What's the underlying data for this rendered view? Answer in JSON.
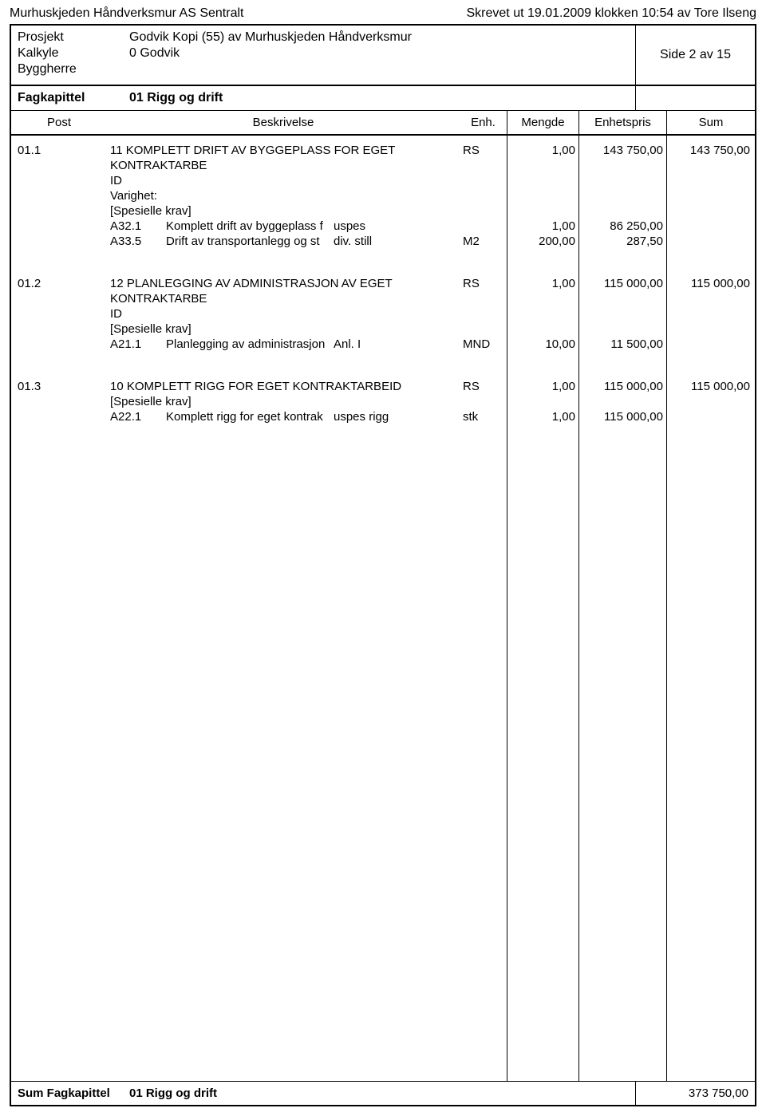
{
  "top": {
    "left": "Murhuskjeden Håndverksmur AS Sentralt",
    "right": "Skrevet ut 19.01.2009 klokken 10:54 av Tore Ilseng"
  },
  "header": {
    "prosjekt_label": "Prosjekt",
    "prosjekt_value": "Godvik Kopi (55) av Murhuskjeden Håndverksmur",
    "kalkyle_label": "Kalkyle",
    "kalkyle_value": "0 Godvik",
    "byggherre_label": "Byggherre",
    "side": "Side 2 av 15"
  },
  "fagkapittel": {
    "label": "Fagkapittel",
    "value": "01 Rigg og drift"
  },
  "columns": {
    "post": "Post",
    "beskrivelse": "Beskrivelse",
    "enh": "Enh.",
    "mengde": "Mengde",
    "enhetspris": "Enhetspris",
    "sum": "Sum"
  },
  "items": [
    {
      "post": "01.1",
      "title": "11 KOMPLETT DRIFT AV BYGGEPLASS FOR EGET KONTRAKTARBE",
      "enh": "RS",
      "mengde": "1,00",
      "pris": "143 750,00",
      "sum": "143 750,00",
      "extra": [
        "ID",
        "Varighet:",
        "[Spesielle krav]"
      ],
      "subs": [
        {
          "code": "A32.1",
          "t1": "Komplett drift av byggeplass f",
          "t2": "uspes",
          "enh": "",
          "mengde": "1,00",
          "pris": "86 250,00"
        },
        {
          "code": "A33.5",
          "t1": "Drift av transportanlegg og st",
          "t2": "div. still",
          "enh": "M2",
          "mengde": "200,00",
          "pris": "287,50"
        }
      ]
    },
    {
      "post": "01.2",
      "title": "12 PLANLEGGING AV ADMINISTRASJON AV EGET KONTRAKTARBE",
      "enh": "RS",
      "mengde": "1,00",
      "pris": "115 000,00",
      "sum": "115 000,00",
      "extra": [
        "ID",
        "[Spesielle krav]"
      ],
      "subs": [
        {
          "code": "A21.1",
          "t1": "Planlegging av administrasjon",
          "t2": "Anl. I",
          "enh": "MND",
          "mengde": "10,00",
          "pris": "11 500,00"
        }
      ]
    },
    {
      "post": "01.3",
      "title": "10 KOMPLETT RIGG FOR EGET KONTRAKTARBEID",
      "enh": "RS",
      "mengde": "1,00",
      "pris": "115 000,00",
      "sum": "115 000,00",
      "extra": [
        "[Spesielle krav]"
      ],
      "subs": [
        {
          "code": "A22.1",
          "t1": "Komplett rigg for eget kontrak",
          "t2": "uspes rigg",
          "enh": "stk",
          "mengde": "1,00",
          "pris": "115 000,00"
        }
      ]
    }
  ],
  "footer": {
    "label": "Sum Fagkapittel",
    "value": "01 Rigg og drift",
    "total": "373 750,00"
  }
}
